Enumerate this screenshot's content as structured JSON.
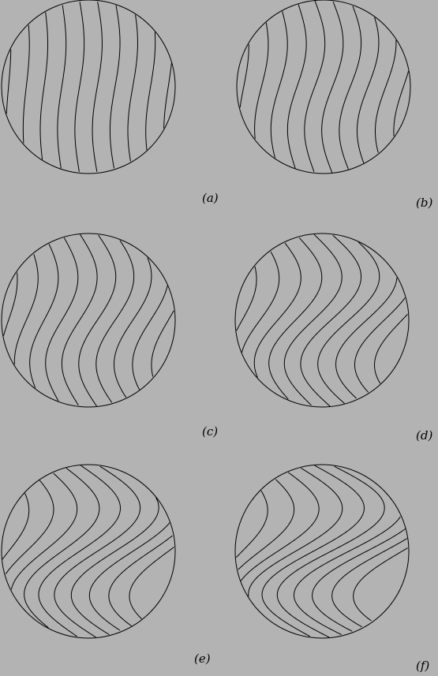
{
  "panels": [
    {
      "id": "a",
      "label": "(a)",
      "twist": 0.1
    },
    {
      "id": "b",
      "label": "(b)",
      "twist": 0.22
    },
    {
      "id": "c",
      "label": "(c)",
      "twist": 0.38
    },
    {
      "id": "d",
      "label": "(d)",
      "twist": 0.62
    },
    {
      "id": "e",
      "label": "(e)",
      "twist": 0.88
    },
    {
      "id": "f",
      "label": "(f)",
      "twist": 1.1
    }
  ],
  "contours_per_panel": 10,
  "colors": {
    "background": "#b3b3b3",
    "line": "#000000"
  }
}
